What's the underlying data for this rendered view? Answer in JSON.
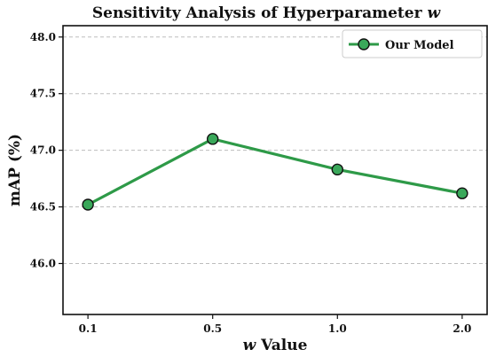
{
  "chart_data": {
    "type": "line",
    "title_main": "Sensitivity Analysis of Hyperparameter ",
    "title_var": "w",
    "xlabel_var": "w",
    "xlabel_rest": " Value",
    "ylabel": "mAP (%)",
    "x_tick_labels": [
      "0.1",
      "0.5",
      "1.0",
      "2.0"
    ],
    "y_ticks": [
      46.0,
      46.5,
      47.0,
      47.5,
      48.0
    ],
    "y_tick_labels": [
      "46.0",
      "46.5",
      "47.0",
      "47.5",
      "48.0"
    ],
    "xlim": [
      -0.2,
      3.2
    ],
    "ylim": [
      45.55,
      48.1
    ],
    "grid": "y-dashed",
    "legend_position": "top-right",
    "series": [
      {
        "name": "Our Model",
        "color": "#2e9a48",
        "marker_color": "#3aa85a",
        "x": [
          0.1,
          0.5,
          1.0,
          2.0
        ],
        "values": [
          46.52,
          47.1,
          46.83,
          46.62
        ]
      }
    ]
  }
}
